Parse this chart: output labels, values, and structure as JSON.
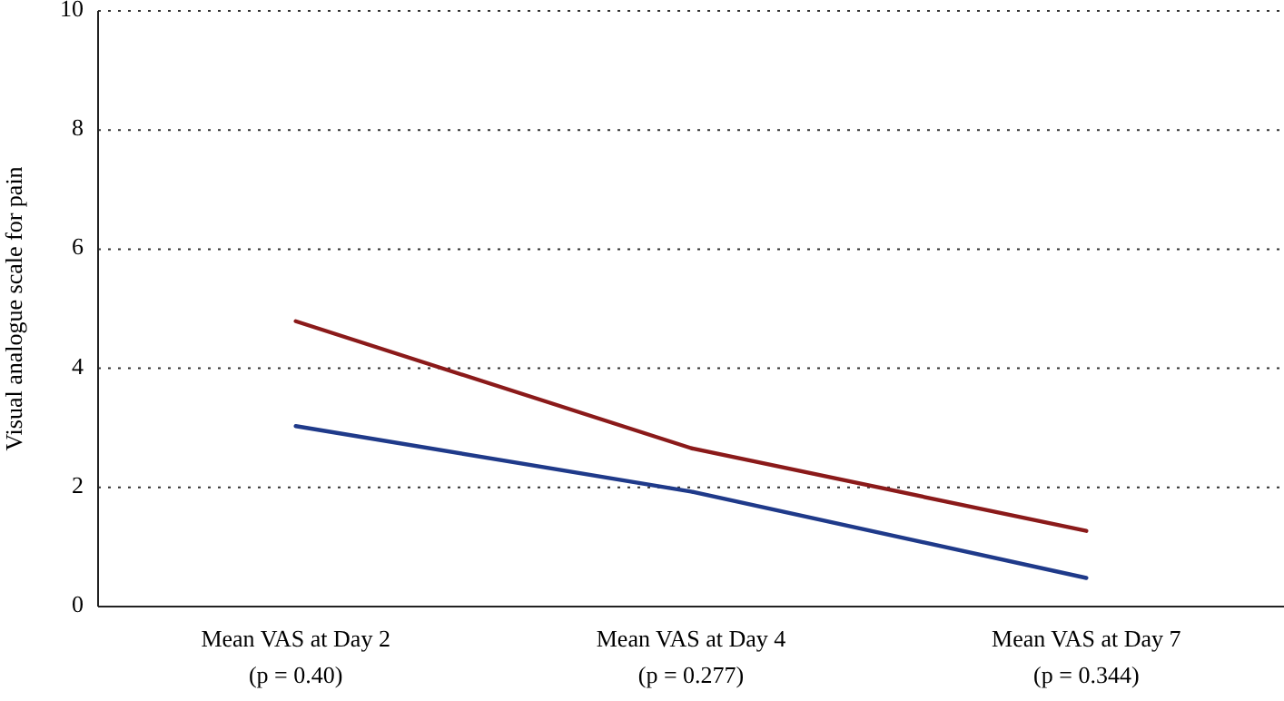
{
  "chart_data": {
    "type": "line",
    "ylabel": "Visual analogue scale for pain",
    "categories": [
      "Mean VAS at Day 2\n(p = 0.40)",
      "Mean VAS at Day 4\n(p = 0.277)",
      "Mean VAS at Day 7\n(p = 0.344)"
    ],
    "series": [
      {
        "color": "#8b1a1a",
        "values": [
          4.79,
          2.66,
          1.27
        ]
      },
      {
        "color": "#1f3a8a",
        "values": [
          3.03,
          1.93,
          0.48
        ]
      }
    ],
    "ylim": [
      0,
      10
    ],
    "yticks": [
      0,
      2,
      4,
      6,
      8,
      10
    ],
    "grid": "y",
    "marker": "none",
    "line_style": "solid"
  }
}
